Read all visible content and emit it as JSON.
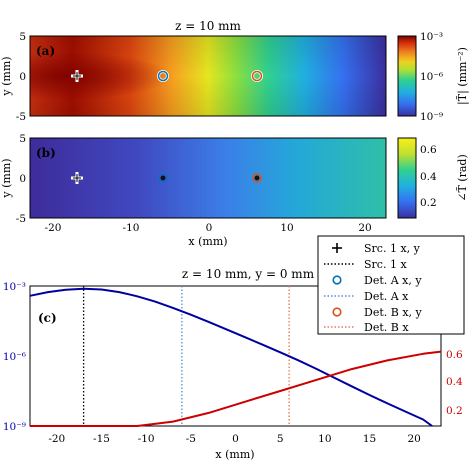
{
  "chart_data": [
    {
      "type": "heatmap",
      "panel_label": "(a)",
      "title": "z = 10 mm",
      "ylabel": "y (mm)",
      "xlim": [
        -23,
        23
      ],
      "ylim": [
        -5,
        5
      ],
      "yticks": [
        "-5",
        "0",
        "5"
      ],
      "colorbar": {
        "label": "|T̃| (mm⁻²)",
        "scale": "log",
        "range": [
          1e-09,
          0.001
        ],
        "ticks": [
          "10⁻³",
          "10⁻⁶",
          "10⁻⁹"
        ]
      },
      "markers": [
        {
          "name": "Src. 1",
          "x": -17,
          "y": 0,
          "symbol": "plus"
        },
        {
          "name": "Det. A",
          "x": -6,
          "y": 0,
          "symbol": "circle",
          "color": "#1f77b4"
        },
        {
          "name": "Det. B",
          "x": 6,
          "y": 0,
          "symbol": "circle",
          "color": "#d95319"
        }
      ]
    },
    {
      "type": "heatmap",
      "panel_label": "(b)",
      "ylabel": "y (mm)",
      "xlabel": "x (mm)",
      "xlim": [
        -23,
        23
      ],
      "ylim": [
        -5,
        5
      ],
      "xticks": [
        "-20",
        "-10",
        "0",
        "10",
        "20"
      ],
      "yticks": [
        "-5",
        "0",
        "5"
      ],
      "colorbar": {
        "label": "∠T̃ (rad)",
        "scale": "linear",
        "range": [
          0.1,
          0.7
        ],
        "ticks": [
          "0.6",
          "0.4",
          "0.2"
        ]
      }
    },
    {
      "type": "line",
      "panel_label": "(c)",
      "title": "z = 10 mm, y = 0 mm",
      "xlabel": "x (mm)",
      "xlim": [
        -23,
        23
      ],
      "xticks": [
        "-20",
        "-15",
        "-10",
        "-5",
        "0",
        "5",
        "10",
        "15",
        "20"
      ],
      "left_axis": {
        "scale": "log",
        "range": [
          1e-09,
          0.001
        ],
        "ticks": [
          "10⁻³",
          "10⁻⁶",
          "10⁻⁹"
        ],
        "color": "#0000a0"
      },
      "right_axis": {
        "scale": "linear",
        "range": [
          0.1,
          0.74
        ],
        "ticks": [
          "0.6",
          "0.4",
          "0.2"
        ],
        "color": "#cc0000"
      },
      "series": [
        {
          "axis": "left",
          "color": "#0000a0",
          "x": [
            -23,
            -21,
            -19,
            -17,
            -15,
            -13,
            -11,
            -9,
            -7,
            -5,
            -3,
            -1,
            1,
            3,
            5,
            7,
            9,
            11,
            13,
            15,
            17,
            19,
            21,
            22
          ],
          "log10_y": [
            -3.42,
            -3.26,
            -3.16,
            -3.12,
            -3.15,
            -3.26,
            -3.44,
            -3.67,
            -3.94,
            -4.23,
            -4.54,
            -4.86,
            -5.18,
            -5.51,
            -5.84,
            -6.18,
            -6.54,
            -6.92,
            -7.3,
            -7.67,
            -8.03,
            -8.38,
            -8.72,
            -9.0
          ]
        },
        {
          "axis": "right",
          "color": "#cc0000",
          "x": [
            -23,
            -19,
            -15,
            -11,
            -7,
            -3,
            1,
            5,
            9,
            13,
            17,
            21,
            23
          ],
          "y": [
            0.1,
            0.1,
            0.1,
            0.1,
            0.12,
            0.16,
            0.21,
            0.26,
            0.31,
            0.36,
            0.4,
            0.43,
            0.44
          ]
        }
      ],
      "vlines": [
        {
          "x": -17,
          "color": "#000000"
        },
        {
          "x": -6,
          "color": "#4a90d9"
        },
        {
          "x": 6,
          "color": "#e07b50"
        }
      ]
    }
  ],
  "legend": {
    "entries": [
      {
        "label": "Src. 1 x, y",
        "symbol": "plus",
        "color": "#000000"
      },
      {
        "label": "Src. 1 x",
        "symbol": "dotted",
        "color": "#000000"
      },
      {
        "label": "Det. A x, y",
        "symbol": "circle",
        "color": "#0072bd"
      },
      {
        "label": "Det. A x",
        "symbol": "dotted",
        "color": "#4a90d9"
      },
      {
        "label": "Det. B x, y",
        "symbol": "circle",
        "color": "#d95319"
      },
      {
        "label": "Det. B x",
        "symbol": "dotted",
        "color": "#e07b50"
      }
    ]
  }
}
